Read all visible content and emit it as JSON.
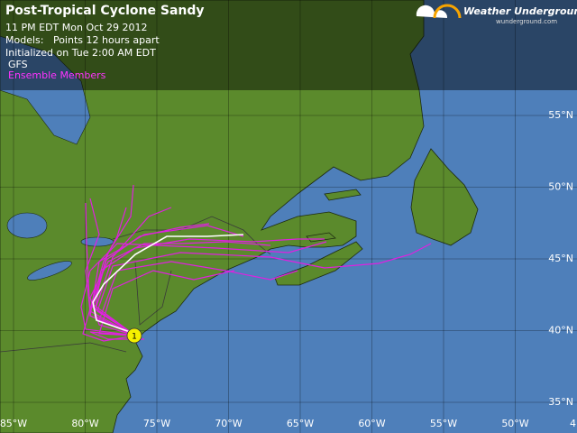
{
  "header": {
    "title": "Post-Tropical Cyclone Sandy",
    "lines": [
      "11 PM EDT Mon Oct 29 2012",
      "Models:   Points 12 hours apart",
      "Initialized on Tue 2:00 AM EDT",
      "GFS"
    ],
    "ensemble": "Ensemble Members"
  },
  "logo": {
    "name": "Weather Underground",
    "site": "wunderground.com"
  },
  "lat_labels": [
    "55°N",
    "50°N",
    "45°N",
    "40°N",
    "35°N"
  ],
  "lon_labels": [
    "85°W",
    "80°W",
    "75°W",
    "70°W",
    "65°W",
    "60°W",
    "55°W",
    "50°W",
    "4"
  ],
  "storm_marker": "1"
}
